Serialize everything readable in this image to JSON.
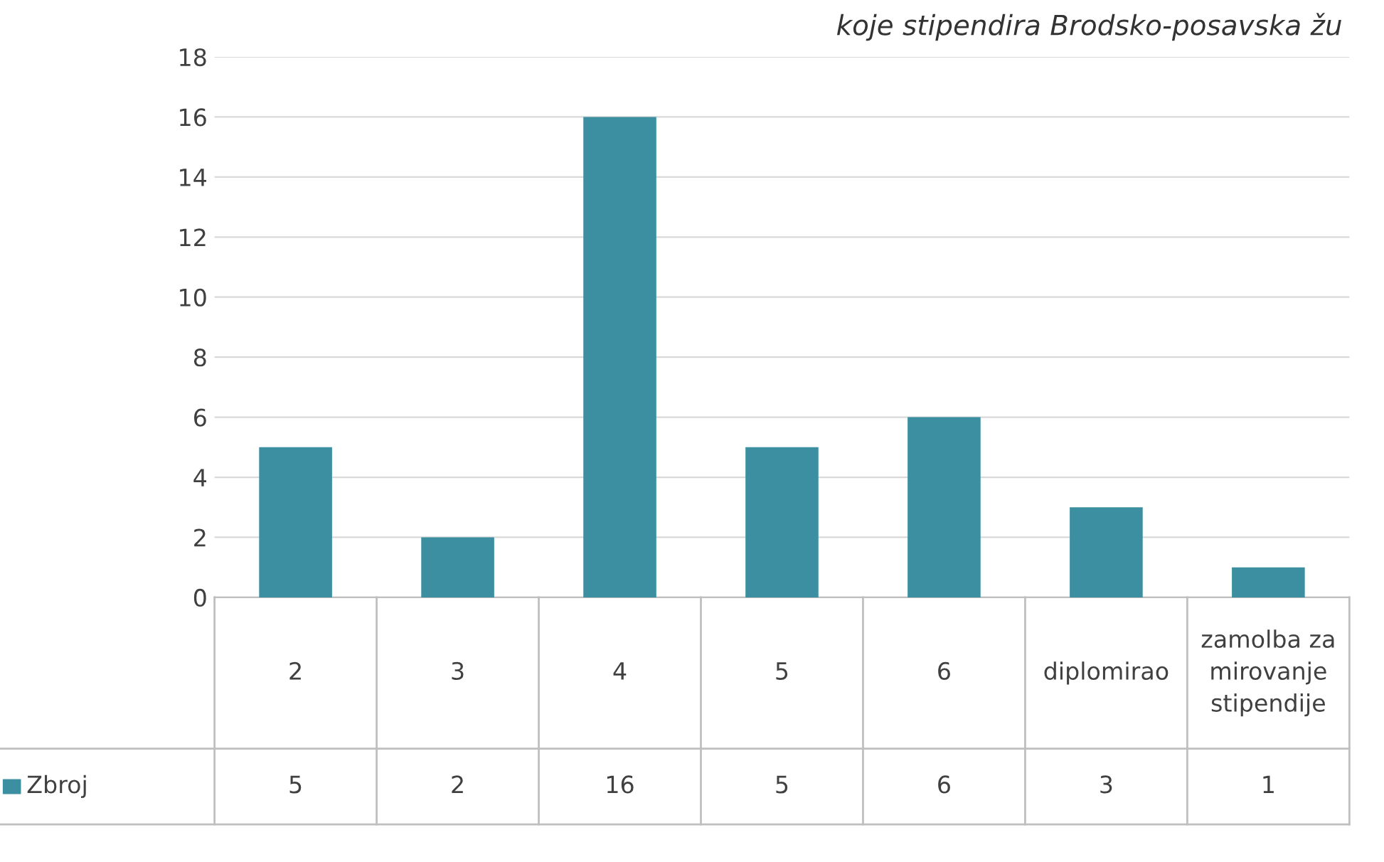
{
  "chart_data": {
    "type": "bar",
    "title": "koje stipendira Brodsko-posavska žu",
    "categories": [
      "2",
      "3",
      "4",
      "5",
      "6",
      "diplomirao",
      "zamolba za mirovanje stipendije"
    ],
    "series": [
      {
        "name": "Zbroj",
        "color": "#3b8fa0",
        "values": [
          5,
          2,
          16,
          5,
          6,
          3,
          1
        ]
      }
    ],
    "ylim": [
      0,
      18
    ],
    "yticks": [
      0,
      2,
      4,
      6,
      8,
      10,
      12,
      14,
      16,
      18
    ],
    "grid": "y",
    "data_labels": true,
    "legend": "bottom left"
  }
}
